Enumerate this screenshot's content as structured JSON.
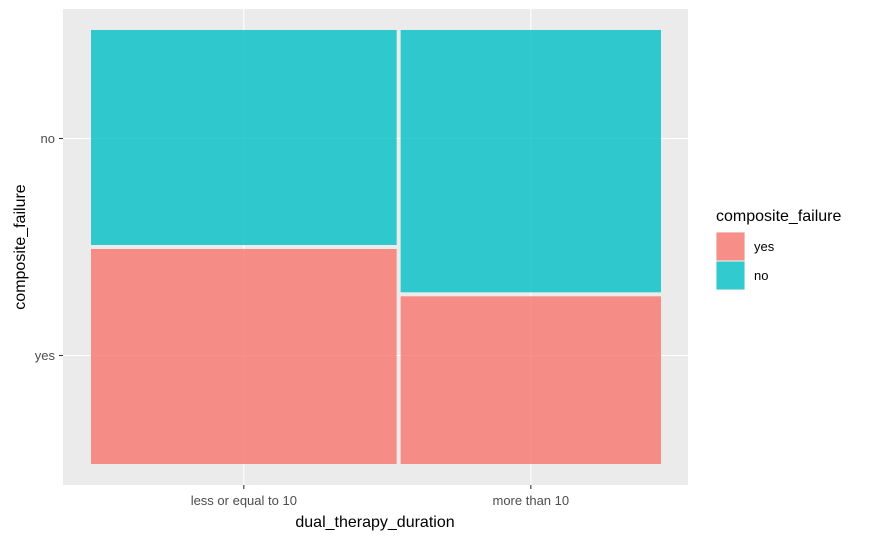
{
  "colors": {
    "panel_bg": "#ebebeb",
    "grid_major": "#ffffff",
    "grid_minor": "#f5f5f5",
    "yes": "#f8766d",
    "no": "#00bfc4"
  },
  "chart_data": {
    "type": "mosaic",
    "xlabel": "dual_therapy_duration",
    "ylabel": "composite_failure",
    "categories": [
      "less or equal to 10",
      "more than 10"
    ],
    "category_widths": [
      0.54,
      0.46
    ],
    "y_ticks": [
      "yes",
      "no"
    ],
    "series": [
      {
        "name": "yes",
        "values": [
          0.5,
          0.39
        ]
      },
      {
        "name": "no",
        "values": [
          0.5,
          0.61
        ]
      }
    ],
    "grid": true,
    "legend_position": "right",
    "legend": {
      "title": "composite_failure",
      "items": [
        "yes",
        "no"
      ]
    }
  }
}
